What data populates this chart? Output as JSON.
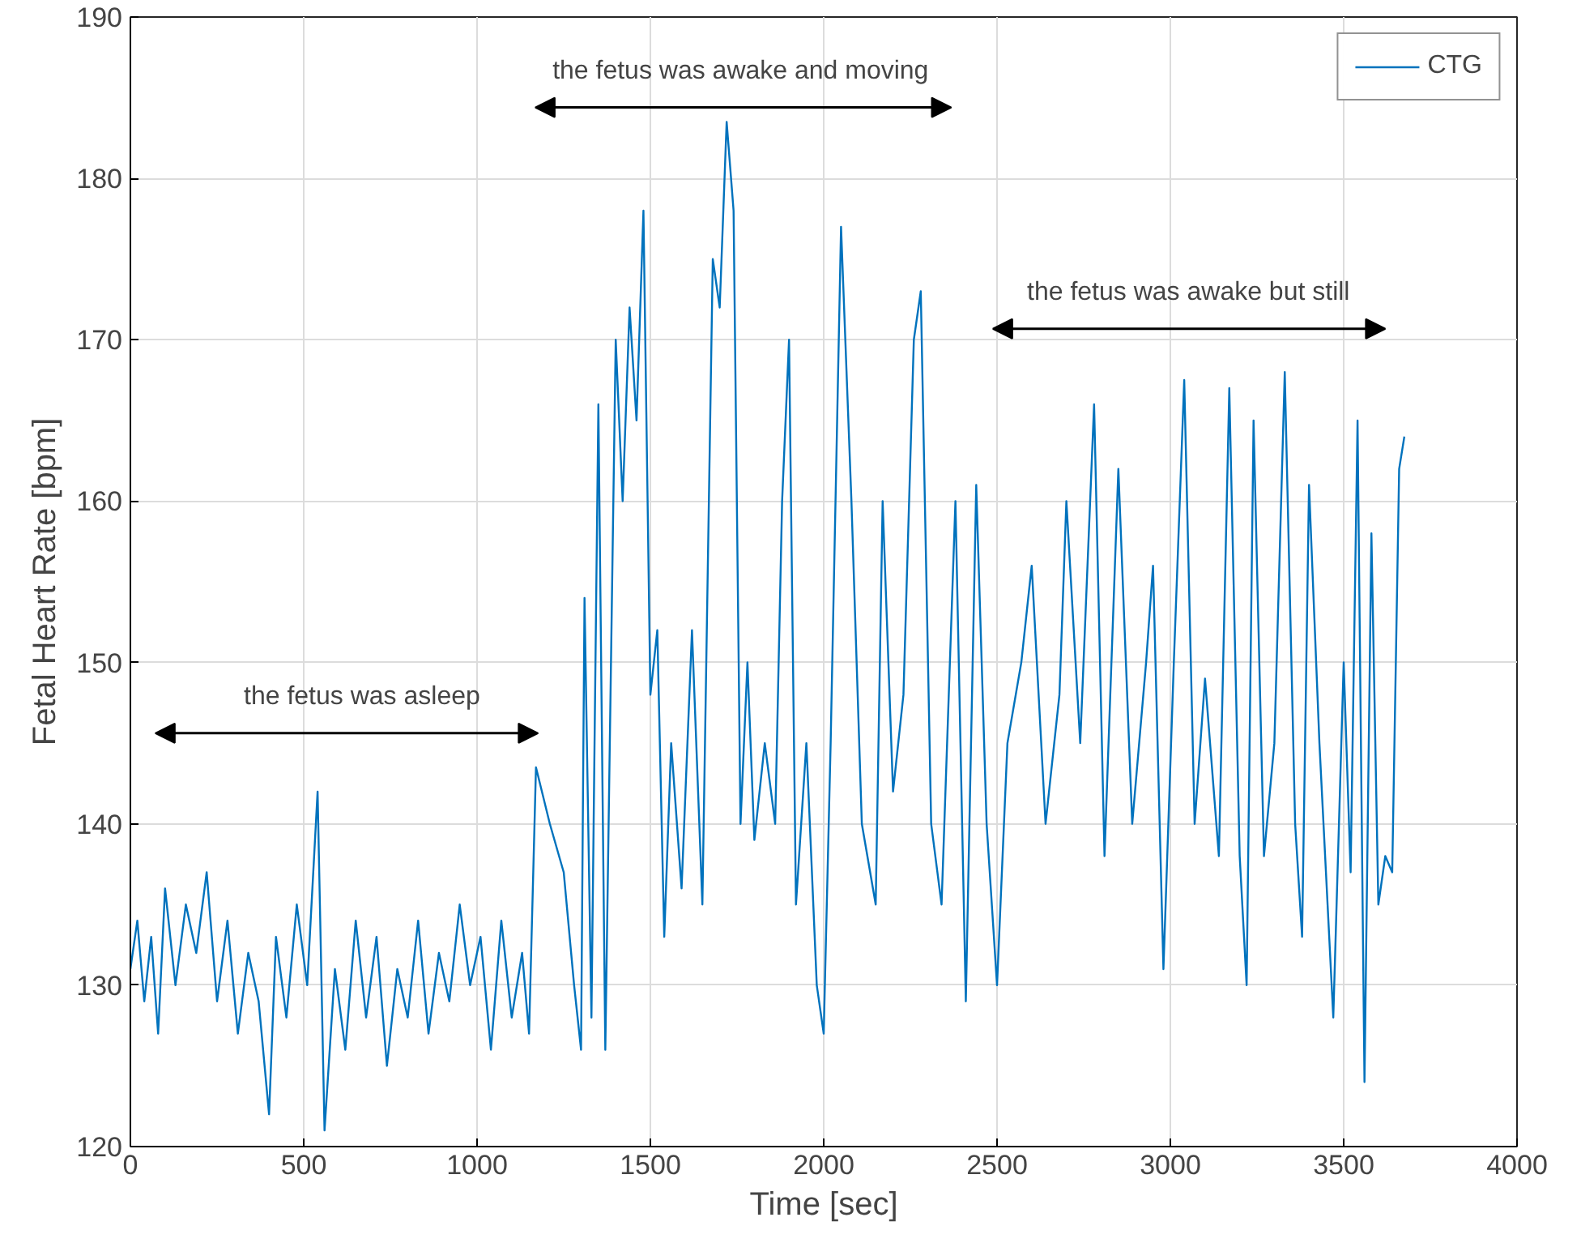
{
  "chart_data": {
    "type": "line",
    "xlabel": "Time [sec]",
    "ylabel": "Fetal Heart Rate [bpm]",
    "xlim": [
      0,
      4000
    ],
    "xticks": [
      0,
      500,
      1000,
      1500,
      2000,
      2500,
      3000,
      3500,
      4000
    ],
    "ylim": [
      120,
      190
    ],
    "yticks": [
      120,
      130,
      140,
      150,
      160,
      170,
      180,
      190
    ],
    "grid": true,
    "legend": "top right",
    "x": [
      0,
      20,
      40,
      60,
      80,
      100,
      130,
      160,
      190,
      220,
      250,
      280,
      310,
      340,
      370,
      400,
      420,
      450,
      480,
      510,
      540,
      560,
      590,
      620,
      650,
      680,
      710,
      740,
      770,
      800,
      830,
      860,
      890,
      920,
      950,
      980,
      1010,
      1040,
      1070,
      1100,
      1130,
      1150,
      1170,
      1210,
      1250,
      1280,
      1300,
      1310,
      1330,
      1350,
      1370,
      1400,
      1420,
      1440,
      1460,
      1480,
      1500,
      1520,
      1540,
      1560,
      1590,
      1620,
      1650,
      1680,
      1700,
      1720,
      1740,
      1760,
      1780,
      1800,
      1830,
      1860,
      1880,
      1900,
      1920,
      1950,
      1980,
      2000,
      2020,
      2050,
      2080,
      2110,
      2150,
      2170,
      2200,
      2230,
      2260,
      2280,
      2310,
      2340,
      2380,
      2410,
      2440,
      2470,
      2500,
      2530,
      2570,
      2600,
      2640,
      2680,
      2700,
      2740,
      2780,
      2810,
      2850,
      2890,
      2930,
      2950,
      2980,
      3010,
      3040,
      3070,
      3100,
      3140,
      3170,
      3200,
      3220,
      3240,
      3270,
      3300,
      3330,
      3360,
      3380,
      3400,
      3430,
      3470,
      3500,
      3520,
      3540,
      3560,
      3580,
      3600,
      3620,
      3640,
      3660,
      3675
    ],
    "series": [
      {
        "name": "CTG",
        "color": "#0072bd",
        "values": [
          131,
          134,
          129,
          133,
          127,
          136,
          130,
          135,
          132,
          137,
          129,
          134,
          127,
          132,
          129,
          122,
          133,
          128,
          135,
          130,
          142,
          121,
          131,
          126,
          134,
          128,
          133,
          125,
          131,
          128,
          134,
          127,
          132,
          129,
          135,
          130,
          133,
          126,
          134,
          128,
          132,
          127,
          143.5,
          140,
          137,
          130,
          126,
          154,
          128,
          166,
          126,
          170,
          160,
          172,
          165,
          178,
          148,
          152,
          133,
          145,
          136,
          152,
          135,
          175,
          172,
          183.5,
          178,
          140,
          150,
          139,
          145,
          140,
          160,
          170,
          135,
          145,
          130,
          127,
          145,
          177,
          160,
          140,
          135,
          160,
          142,
          148,
          170,
          173,
          140,
          135,
          160,
          129,
          161,
          140,
          130,
          145,
          150,
          156,
          140,
          148,
          160,
          145,
          166,
          138,
          162,
          140,
          150,
          156,
          131,
          150,
          167.5,
          140,
          149,
          138,
          167,
          138,
          130,
          165,
          138,
          145,
          168,
          140,
          133,
          161,
          145,
          128,
          150,
          137,
          165,
          124,
          158,
          135,
          138,
          137,
          162,
          164
        ]
      }
    ],
    "annotations": [
      "the fetus was asleep",
      "the fetus was awake and moving",
      "the fetus was awake but still"
    ]
  }
}
